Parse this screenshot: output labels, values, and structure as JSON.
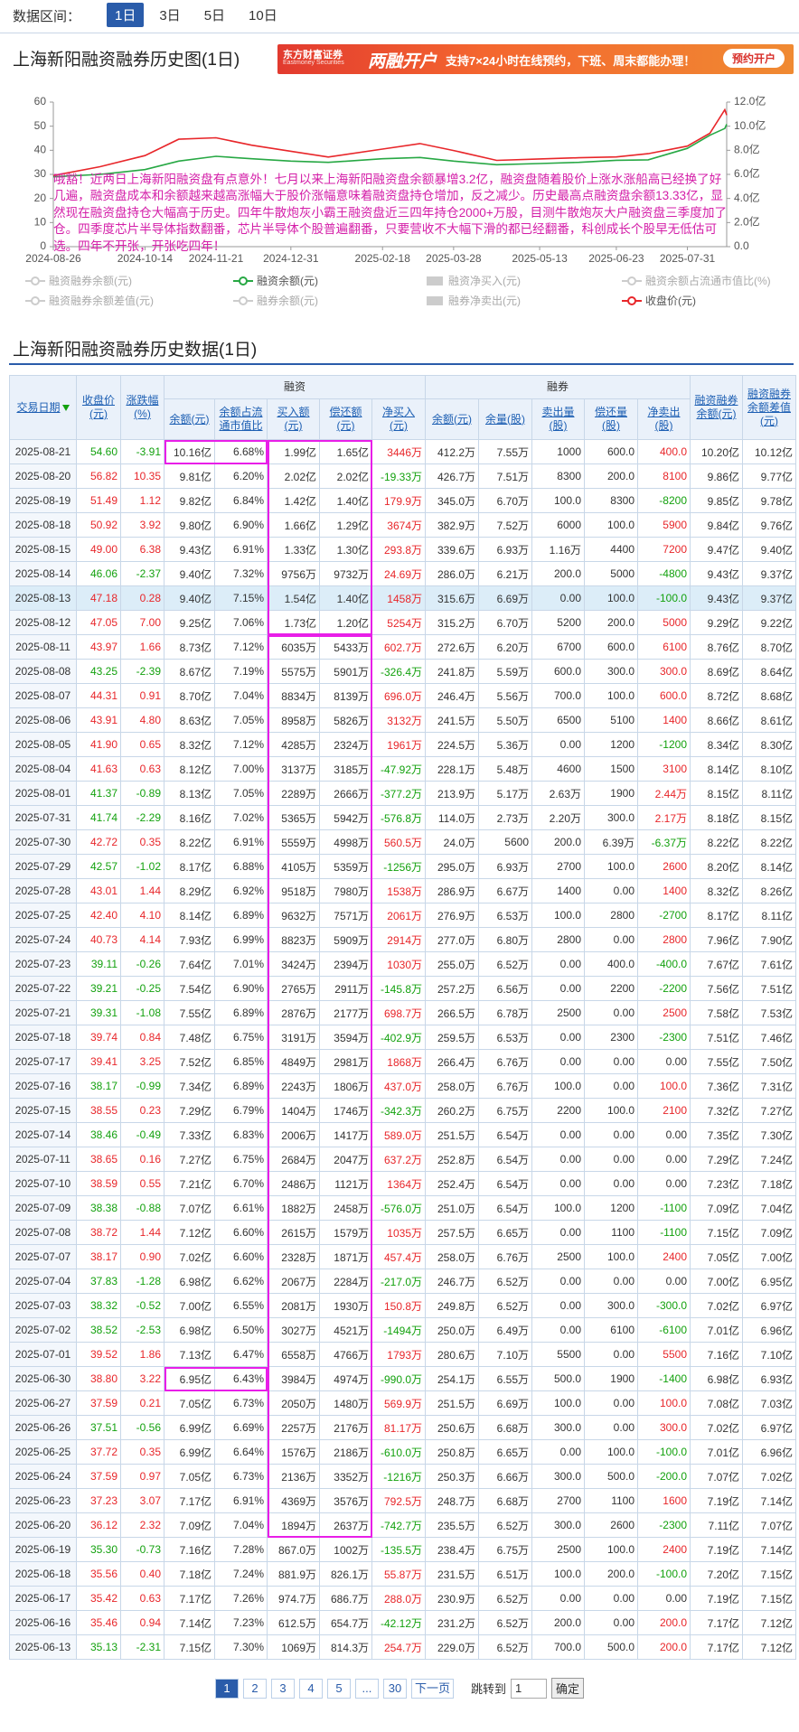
{
  "top_bar": {
    "label": "数据区间：",
    "ranges": [
      "1日",
      "3日",
      "5日",
      "10日"
    ]
  },
  "banner": {
    "brand": "东方财富证券",
    "brand_en": "Eastmoney Securities",
    "headline": "两融开户",
    "text": "支持7×24小时在线预约，下班、周末都能办理！",
    "button": "预约开户"
  },
  "chart_data": {
    "type": "line",
    "title": "上海新阳融资融券历史图(1日)",
    "x": [
      "2024-08-26",
      "2024-09-20",
      "2024-10-14",
      "2024-11-01",
      "2024-11-21",
      "2024-12-10",
      "2024-12-31",
      "2025-01-20",
      "2025-02-18",
      "2025-03-10",
      "2025-03-28",
      "2025-04-20",
      "2025-05-13",
      "2025-06-03",
      "2025-06-23",
      "2025-07-10",
      "2025-07-31",
      "2025-08-12",
      "2025-08-20",
      "2025-08-21"
    ],
    "xlim": [
      "2024-08-26",
      "2025-08-21"
    ],
    "xticks": [
      "2024-08-26",
      "2024-10-14",
      "2024-11-21",
      "2024-12-31",
      "2025-02-18",
      "2025-03-28",
      "2025-05-13",
      "2025-06-23",
      "2025-07-31"
    ],
    "ylim": [
      0,
      60
    ],
    "yticks": [
      0,
      10,
      20,
      30,
      40,
      50,
      60
    ],
    "y2lim": [
      0,
      12
    ],
    "y2ticks": [
      {
        "value": 0,
        "label": "0.0"
      },
      {
        "value": 2,
        "label": "2.0亿"
      },
      {
        "value": 4,
        "label": "4.0亿"
      },
      {
        "value": 6,
        "label": "6.0亿"
      },
      {
        "value": 8,
        "label": "8.0亿"
      },
      {
        "value": 10,
        "label": "10.0亿"
      },
      {
        "value": 12,
        "label": "12.0亿"
      }
    ],
    "series": [
      {
        "name": "收盘价(元)",
        "color": "#e8262a",
        "values": [
          29.5,
          33.2,
          37.8,
          44.6,
          45.2,
          42.1,
          39.6,
          37.2,
          40.5,
          42.8,
          39.9,
          35.8,
          36.4,
          36.9,
          37.23,
          38.59,
          41.74,
          47.05,
          56.82,
          54.6
        ]
      },
      {
        "name": "融资余额(元)",
        "color": "#27a844",
        "axis": "y2",
        "values": [
          5.8,
          6.0,
          6.4,
          7.1,
          7.5,
          7.3,
          7.1,
          7.0,
          7.3,
          7.4,
          7.1,
          6.8,
          6.9,
          7.0,
          7.17,
          7.21,
          8.16,
          9.25,
          9.81,
          10.16
        ]
      }
    ],
    "hidden_series": [
      {
        "name": "融资融券余额(元)",
        "symbol": "line"
      },
      {
        "name": "融资净买入(元)",
        "symbol": "rect"
      },
      {
        "name": "融资余额占流通市值比(%)",
        "symbol": "line"
      },
      {
        "name": "融资融券余额差值(元)",
        "symbol": "line"
      },
      {
        "name": "融券余额(元)",
        "symbol": "line"
      },
      {
        "name": "融券净卖出(元)",
        "symbol": "rect"
      }
    ],
    "annotation": "哦豁！近两日上海新阳融资盘有点意外！七月以来上海新阳融资盘余额暴增3.2亿，融资盘随着股价上涨水涨船高已经换了好几遍，融资盘成本和余额越来越高涨幅大于股价涨幅意味着融资盘持仓增加，反之减少。历史最高点融资盘余额13.33亿，显然现在融资盘持仓大幅高于历史。四年牛散炮灰小霸王融资盘近三四年持仓2000+万股，目测牛散炮灰大户融资盘三季度加了仓。四季度芯片半导体指数翻番，芯片半导体个股普遍翻番，只要营收不大幅下滑的都已经翻番，科创成长个股早无低估可选。四年不开张，开张吃四年！"
  },
  "table": {
    "title": "上海新阳融资融券历史数据(1日)",
    "header_top": [
      "交易日期",
      "收盘价(元)",
      "涨跌幅(%)",
      "融资",
      "融券",
      "融资融券余额(元)",
      "融资融券余额差值(元)"
    ],
    "header_sub": [
      "余额(元)",
      "余额占流通市值比",
      "买入额(元)",
      "偿还额(元)",
      "净买入(元)",
      "余额(元)",
      "余量(股)",
      "卖出量(股)",
      "偿还量(股)",
      "净卖出(股)"
    ],
    "rows": [
      [
        "2025-08-21",
        "54.60",
        "-3.91",
        "10.16亿",
        "6.68%",
        "1.99亿",
        "1.65亿",
        "3446万",
        "412.2万",
        "7.55万",
        "1000",
        "600.0",
        "400.0",
        "10.20亿",
        "10.12亿"
      ],
      [
        "2025-08-20",
        "56.82",
        "10.35",
        "9.81亿",
        "6.20%",
        "2.02亿",
        "2.02亿",
        "-19.33万",
        "426.7万",
        "7.51万",
        "8300",
        "200.0",
        "8100",
        "9.86亿",
        "9.77亿"
      ],
      [
        "2025-08-19",
        "51.49",
        "1.12",
        "9.82亿",
        "6.84%",
        "1.42亿",
        "1.40亿",
        "179.9万",
        "345.0万",
        "6.70万",
        "100.0",
        "8300",
        "-8200",
        "9.85亿",
        "9.78亿"
      ],
      [
        "2025-08-18",
        "50.92",
        "3.92",
        "9.80亿",
        "6.90%",
        "1.66亿",
        "1.29亿",
        "3674万",
        "382.9万",
        "7.52万",
        "6000",
        "100.0",
        "5900",
        "9.84亿",
        "9.76亿"
      ],
      [
        "2025-08-15",
        "49.00",
        "6.38",
        "9.43亿",
        "6.91%",
        "1.33亿",
        "1.30亿",
        "293.8万",
        "339.6万",
        "6.93万",
        "1.16万",
        "4400",
        "7200",
        "9.47亿",
        "9.40亿"
      ],
      [
        "2025-08-14",
        "46.06",
        "-2.37",
        "9.40亿",
        "7.32%",
        "9756万",
        "9732万",
        "24.69万",
        "286.0万",
        "6.21万",
        "200.0",
        "5000",
        "-4800",
        "9.43亿",
        "9.37亿"
      ],
      [
        "2025-08-13",
        "47.18",
        "0.28",
        "9.40亿",
        "7.15%",
        "1.54亿",
        "1.40亿",
        "1458万",
        "315.6万",
        "6.69万",
        "0.00",
        "100.0",
        "-100.0",
        "9.43亿",
        "9.37亿"
      ],
      [
        "2025-08-12",
        "47.05",
        "7.00",
        "9.25亿",
        "7.06%",
        "1.73亿",
        "1.20亿",
        "5254万",
        "315.2万",
        "6.70万",
        "5200",
        "200.0",
        "5000",
        "9.29亿",
        "9.22亿"
      ],
      [
        "2025-08-11",
        "43.97",
        "1.66",
        "8.73亿",
        "7.12%",
        "6035万",
        "5433万",
        "602.7万",
        "272.6万",
        "6.20万",
        "6700",
        "600.0",
        "6100",
        "8.76亿",
        "8.70亿"
      ],
      [
        "2025-08-08",
        "43.25",
        "-2.39",
        "8.67亿",
        "7.19%",
        "5575万",
        "5901万",
        "-326.4万",
        "241.8万",
        "5.59万",
        "600.0",
        "300.0",
        "300.0",
        "8.69亿",
        "8.64亿"
      ],
      [
        "2025-08-07",
        "44.31",
        "0.91",
        "8.70亿",
        "7.04%",
        "8834万",
        "8139万",
        "696.0万",
        "246.4万",
        "5.56万",
        "700.0",
        "100.0",
        "600.0",
        "8.72亿",
        "8.68亿"
      ],
      [
        "2025-08-06",
        "43.91",
        "4.80",
        "8.63亿",
        "7.05%",
        "8958万",
        "5826万",
        "3132万",
        "241.5万",
        "5.50万",
        "6500",
        "5100",
        "1400",
        "8.66亿",
        "8.61亿"
      ],
      [
        "2025-08-05",
        "41.90",
        "0.65",
        "8.32亿",
        "7.12%",
        "4285万",
        "2324万",
        "1961万",
        "224.5万",
        "5.36万",
        "0.00",
        "1200",
        "-1200",
        "8.34亿",
        "8.30亿"
      ],
      [
        "2025-08-04",
        "41.63",
        "0.63",
        "8.12亿",
        "7.00%",
        "3137万",
        "3185万",
        "-47.92万",
        "228.1万",
        "5.48万",
        "4600",
        "1500",
        "3100",
        "8.14亿",
        "8.10亿"
      ],
      [
        "2025-08-01",
        "41.37",
        "-0.89",
        "8.13亿",
        "7.05%",
        "2289万",
        "2666万",
        "-377.2万",
        "213.9万",
        "5.17万",
        "2.63万",
        "1900",
        "2.44万",
        "8.15亿",
        "8.11亿"
      ],
      [
        "2025-07-31",
        "41.74",
        "-2.29",
        "8.16亿",
        "7.02%",
        "5365万",
        "5942万",
        "-576.8万",
        "114.0万",
        "2.73万",
        "2.20万",
        "300.0",
        "2.17万",
        "8.18亿",
        "8.15亿"
      ],
      [
        "2025-07-30",
        "42.72",
        "0.35",
        "8.22亿",
        "6.91%",
        "5559万",
        "4998万",
        "560.5万",
        "24.0万",
        "5600",
        "200.0",
        "6.39万",
        "-6.37万",
        "8.22亿",
        "8.22亿"
      ],
      [
        "2025-07-29",
        "42.57",
        "-1.02",
        "8.17亿",
        "6.88%",
        "4105万",
        "5359万",
        "-1256万",
        "295.0万",
        "6.93万",
        "2700",
        "100.0",
        "2600",
        "8.20亿",
        "8.14亿"
      ],
      [
        "2025-07-28",
        "43.01",
        "1.44",
        "8.29亿",
        "6.92%",
        "9518万",
        "7980万",
        "1538万",
        "286.9万",
        "6.67万",
        "1400",
        "0.00",
        "1400",
        "8.32亿",
        "8.26亿"
      ],
      [
        "2025-07-25",
        "42.40",
        "4.10",
        "8.14亿",
        "6.89%",
        "9632万",
        "7571万",
        "2061万",
        "276.9万",
        "6.53万",
        "100.0",
        "2800",
        "-2700",
        "8.17亿",
        "8.11亿"
      ],
      [
        "2025-07-24",
        "40.73",
        "4.14",
        "7.93亿",
        "6.99%",
        "8823万",
        "5909万",
        "2914万",
        "277.0万",
        "6.80万",
        "2800",
        "0.00",
        "2800",
        "7.96亿",
        "7.90亿"
      ],
      [
        "2025-07-23",
        "39.11",
        "-0.26",
        "7.64亿",
        "7.01%",
        "3424万",
        "2394万",
        "1030万",
        "255.0万",
        "6.52万",
        "0.00",
        "400.0",
        "-400.0",
        "7.67亿",
        "7.61亿"
      ],
      [
        "2025-07-22",
        "39.21",
        "-0.25",
        "7.54亿",
        "6.90%",
        "2765万",
        "2911万",
        "-145.8万",
        "257.2万",
        "6.56万",
        "0.00",
        "2200",
        "-2200",
        "7.56亿",
        "7.51亿"
      ],
      [
        "2025-07-21",
        "39.31",
        "-1.08",
        "7.55亿",
        "6.89%",
        "2876万",
        "2177万",
        "698.7万",
        "266.5万",
        "6.78万",
        "2500",
        "0.00",
        "2500",
        "7.58亿",
        "7.53亿"
      ],
      [
        "2025-07-18",
        "39.74",
        "0.84",
        "7.48亿",
        "6.75%",
        "3191万",
        "3594万",
        "-402.9万",
        "259.5万",
        "6.53万",
        "0.00",
        "2300",
        "-2300",
        "7.51亿",
        "7.46亿"
      ],
      [
        "2025-07-17",
        "39.41",
        "3.25",
        "7.52亿",
        "6.85%",
        "4849万",
        "2981万",
        "1868万",
        "266.4万",
        "6.76万",
        "0.00",
        "0.00",
        "0.00",
        "7.55亿",
        "7.50亿"
      ],
      [
        "2025-07-16",
        "38.17",
        "-0.99",
        "7.34亿",
        "6.89%",
        "2243万",
        "1806万",
        "437.0万",
        "258.0万",
        "6.76万",
        "100.0",
        "0.00",
        "100.0",
        "7.36亿",
        "7.31亿"
      ],
      [
        "2025-07-15",
        "38.55",
        "0.23",
        "7.29亿",
        "6.79%",
        "1404万",
        "1746万",
        "-342.3万",
        "260.2万",
        "6.75万",
        "2200",
        "100.0",
        "2100",
        "7.32亿",
        "7.27亿"
      ],
      [
        "2025-07-14",
        "38.46",
        "-0.49",
        "7.33亿",
        "6.83%",
        "2006万",
        "1417万",
        "589.0万",
        "251.5万",
        "6.54万",
        "0.00",
        "0.00",
        "0.00",
        "7.35亿",
        "7.30亿"
      ],
      [
        "2025-07-11",
        "38.65",
        "0.16",
        "7.27亿",
        "6.75%",
        "2684万",
        "2047万",
        "637.2万",
        "252.8万",
        "6.54万",
        "0.00",
        "0.00",
        "0.00",
        "7.29亿",
        "7.24亿"
      ],
      [
        "2025-07-10",
        "38.59",
        "0.55",
        "7.21亿",
        "6.70%",
        "2486万",
        "1121万",
        "1364万",
        "252.4万",
        "6.54万",
        "0.00",
        "0.00",
        "0.00",
        "7.23亿",
        "7.18亿"
      ],
      [
        "2025-07-09",
        "38.38",
        "-0.88",
        "7.07亿",
        "6.61%",
        "1882万",
        "2458万",
        "-576.0万",
        "251.0万",
        "6.54万",
        "100.0",
        "1200",
        "-1100",
        "7.09亿",
        "7.04亿"
      ],
      [
        "2025-07-08",
        "38.72",
        "1.44",
        "7.12亿",
        "6.60%",
        "2615万",
        "1579万",
        "1035万",
        "257.5万",
        "6.65万",
        "0.00",
        "1100",
        "-1100",
        "7.15亿",
        "7.09亿"
      ],
      [
        "2025-07-07",
        "38.17",
        "0.90",
        "7.02亿",
        "6.60%",
        "2328万",
        "1871万",
        "457.4万",
        "258.0万",
        "6.76万",
        "2500",
        "100.0",
        "2400",
        "7.05亿",
        "7.00亿"
      ],
      [
        "2025-07-04",
        "37.83",
        "-1.28",
        "6.98亿",
        "6.62%",
        "2067万",
        "2284万",
        "-217.0万",
        "246.7万",
        "6.52万",
        "0.00",
        "0.00",
        "0.00",
        "7.00亿",
        "6.95亿"
      ],
      [
        "2025-07-03",
        "38.32",
        "-0.52",
        "7.00亿",
        "6.55%",
        "2081万",
        "1930万",
        "150.8万",
        "249.8万",
        "6.52万",
        "0.00",
        "300.0",
        "-300.0",
        "7.02亿",
        "6.97亿"
      ],
      [
        "2025-07-02",
        "38.52",
        "-2.53",
        "6.98亿",
        "6.50%",
        "3027万",
        "4521万",
        "-1494万",
        "250.0万",
        "6.49万",
        "0.00",
        "6100",
        "-6100",
        "7.01亿",
        "6.96亿"
      ],
      [
        "2025-07-01",
        "39.52",
        "1.86",
        "7.13亿",
        "6.47%",
        "6558万",
        "4766万",
        "1793万",
        "280.6万",
        "7.10万",
        "5500",
        "0.00",
        "5500",
        "7.16亿",
        "7.10亿"
      ],
      [
        "2025-06-30",
        "38.80",
        "3.22",
        "6.95亿",
        "6.43%",
        "3984万",
        "4974万",
        "-990.0万",
        "254.1万",
        "6.55万",
        "500.0",
        "1900",
        "-1400",
        "6.98亿",
        "6.93亿"
      ],
      [
        "2025-06-27",
        "37.59",
        "0.21",
        "7.05亿",
        "6.73%",
        "2050万",
        "1480万",
        "569.9万",
        "251.5万",
        "6.69万",
        "100.0",
        "0.00",
        "100.0",
        "7.08亿",
        "7.03亿"
      ],
      [
        "2025-06-26",
        "37.51",
        "-0.56",
        "6.99亿",
        "6.69%",
        "2257万",
        "2176万",
        "81.17万",
        "250.6万",
        "6.68万",
        "300.0",
        "0.00",
        "300.0",
        "7.02亿",
        "6.97亿"
      ],
      [
        "2025-06-25",
        "37.72",
        "0.35",
        "6.99亿",
        "6.64%",
        "1576万",
        "2186万",
        "-610.0万",
        "250.8万",
        "6.65万",
        "0.00",
        "100.0",
        "-100.0",
        "7.01亿",
        "6.96亿"
      ],
      [
        "2025-06-24",
        "37.59",
        "0.97",
        "7.05亿",
        "6.73%",
        "2136万",
        "3352万",
        "-1216万",
        "250.3万",
        "6.66万",
        "300.0",
        "500.0",
        "-200.0",
        "7.07亿",
        "7.02亿"
      ],
      [
        "2025-06-23",
        "37.23",
        "3.07",
        "7.17亿",
        "6.91%",
        "4369万",
        "3576万",
        "792.5万",
        "248.7万",
        "6.68万",
        "2700",
        "1100",
        "1600",
        "7.19亿",
        "7.14亿"
      ],
      [
        "2025-06-20",
        "36.12",
        "2.32",
        "7.09亿",
        "7.04%",
        "1894万",
        "2637万",
        "-742.7万",
        "235.5万",
        "6.52万",
        "300.0",
        "2600",
        "-2300",
        "7.11亿",
        "7.07亿"
      ],
      [
        "2025-06-19",
        "35.30",
        "-0.73",
        "7.16亿",
        "7.28%",
        "867.0万",
        "1002万",
        "-135.5万",
        "238.4万",
        "6.75万",
        "2500",
        "100.0",
        "2400",
        "7.19亿",
        "7.14亿"
      ],
      [
        "2025-06-18",
        "35.56",
        "0.40",
        "7.18亿",
        "7.24%",
        "881.9万",
        "826.1万",
        "55.87万",
        "231.5万",
        "6.51万",
        "100.0",
        "200.0",
        "-100.0",
        "7.20亿",
        "7.15亿"
      ],
      [
        "2025-06-17",
        "35.42",
        "0.63",
        "7.17亿",
        "7.26%",
        "974.7万",
        "686.7万",
        "288.0万",
        "230.9万",
        "6.52万",
        "0.00",
        "0.00",
        "0.00",
        "7.19亿",
        "7.15亿"
      ],
      [
        "2025-06-16",
        "35.46",
        "0.94",
        "7.14亿",
        "7.23%",
        "612.5万",
        "654.7万",
        "-42.12万",
        "231.2万",
        "6.52万",
        "200.0",
        "0.00",
        "200.0",
        "7.17亿",
        "7.12亿"
      ],
      [
        "2025-06-13",
        "35.13",
        "-2.31",
        "7.15亿",
        "7.30%",
        "1069万",
        "814.3万",
        "254.7万",
        "229.0万",
        "6.52万",
        "700.0",
        "500.0",
        "200.0",
        "7.17亿",
        "7.12亿"
      ]
    ]
  },
  "pagination": {
    "pages": [
      "1",
      "2",
      "3",
      "4",
      "5",
      "...",
      "30"
    ],
    "next": "下一页",
    "jump_label": "跳转到",
    "jump_value": "1",
    "confirm": "确定"
  }
}
